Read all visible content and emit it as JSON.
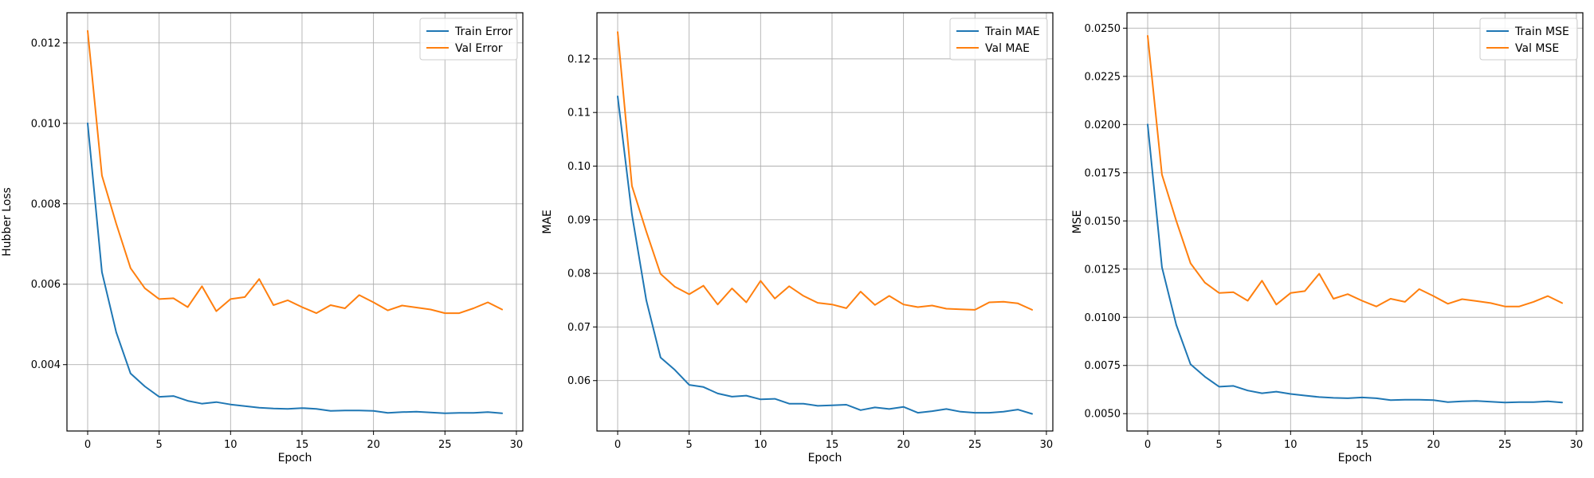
{
  "chart_data": [
    {
      "type": "line",
      "xlabel": "Epoch",
      "ylabel": "Hubber Loss",
      "xlim": [
        -1.45,
        30.45
      ],
      "ylim": [
        0.00235,
        0.01275
      ],
      "xticks": [
        0,
        5,
        10,
        15,
        20,
        25,
        30
      ],
      "yticks": [
        0.004,
        0.006,
        0.008,
        0.01,
        0.012
      ],
      "ytick_labels": [
        "0.004",
        "0.006",
        "0.008",
        "0.010",
        "0.012"
      ],
      "grid": true,
      "legend_position": "upper right",
      "series": [
        {
          "name": "Train Error",
          "color": "#1f77b4",
          "x": [
            0,
            1,
            2,
            3,
            4,
            5,
            6,
            7,
            8,
            9,
            10,
            11,
            12,
            13,
            14,
            15,
            16,
            17,
            18,
            19,
            20,
            21,
            22,
            23,
            24,
            25,
            26,
            27,
            28,
            29
          ],
          "values": [
            0.01,
            0.0063,
            0.0048,
            0.00378,
            0.00346,
            0.0032,
            0.00322,
            0.0031,
            0.00303,
            0.00307,
            0.00301,
            0.00297,
            0.00293,
            0.00291,
            0.0029,
            0.00292,
            0.0029,
            0.00285,
            0.00286,
            0.00286,
            0.00285,
            0.0028,
            0.00282,
            0.00283,
            0.00281,
            0.00279,
            0.0028,
            0.0028,
            0.00282,
            0.00279
          ]
        },
        {
          "name": "Val Error",
          "color": "#ff7f0e",
          "x": [
            0,
            1,
            2,
            3,
            4,
            5,
            6,
            7,
            8,
            9,
            10,
            11,
            12,
            13,
            14,
            15,
            16,
            17,
            18,
            19,
            20,
            21,
            22,
            23,
            24,
            25,
            26,
            27,
            28,
            29
          ],
          "values": [
            0.0123,
            0.0087,
            0.0075,
            0.0064,
            0.0059,
            0.00563,
            0.00565,
            0.00543,
            0.00595,
            0.00533,
            0.00563,
            0.00568,
            0.00613,
            0.00548,
            0.0056,
            0.00543,
            0.00528,
            0.00548,
            0.0054,
            0.00573,
            0.00555,
            0.00535,
            0.00547,
            0.00542,
            0.00537,
            0.00528,
            0.00528,
            0.0054,
            0.00555,
            0.00537
          ]
        }
      ]
    },
    {
      "type": "line",
      "xlabel": "Epoch",
      "ylabel": "MAE",
      "xlim": [
        -1.45,
        30.45
      ],
      "ylim": [
        0.0506,
        0.1286
      ],
      "xticks": [
        0,
        5,
        10,
        15,
        20,
        25,
        30
      ],
      "yticks": [
        0.06,
        0.07,
        0.08,
        0.09,
        0.1,
        0.11,
        0.12
      ],
      "ytick_labels": [
        "0.06",
        "0.07",
        "0.08",
        "0.09",
        "0.10",
        "0.11",
        "0.12"
      ],
      "grid": true,
      "legend_position": "upper right",
      "series": [
        {
          "name": "Train MAE",
          "color": "#1f77b4",
          "x": [
            0,
            1,
            2,
            3,
            4,
            5,
            6,
            7,
            8,
            9,
            10,
            11,
            12,
            13,
            14,
            15,
            16,
            17,
            18,
            19,
            20,
            21,
            22,
            23,
            24,
            25,
            26,
            27,
            28,
            29
          ],
          "values": [
            0.113,
            0.091,
            0.075,
            0.0643,
            0.062,
            0.0592,
            0.0588,
            0.0576,
            0.057,
            0.0572,
            0.0565,
            0.0566,
            0.0557,
            0.0557,
            0.0553,
            0.0554,
            0.0555,
            0.0545,
            0.055,
            0.0547,
            0.0551,
            0.054,
            0.0543,
            0.0547,
            0.0542,
            0.054,
            0.054,
            0.0542,
            0.0546,
            0.0538
          ]
        },
        {
          "name": "Val MAE",
          "color": "#ff7f0e",
          "x": [
            0,
            1,
            2,
            3,
            4,
            5,
            6,
            7,
            8,
            9,
            10,
            11,
            12,
            13,
            14,
            15,
            16,
            17,
            18,
            19,
            20,
            21,
            22,
            23,
            24,
            25,
            26,
            27,
            28,
            29
          ],
          "values": [
            0.125,
            0.0963,
            0.0878,
            0.0799,
            0.0775,
            0.0761,
            0.0777,
            0.0742,
            0.0772,
            0.0746,
            0.0786,
            0.0753,
            0.0776,
            0.0758,
            0.0745,
            0.0742,
            0.0735,
            0.0766,
            0.0741,
            0.0758,
            0.0742,
            0.0737,
            0.074,
            0.0734,
            0.0733,
            0.0732,
            0.0746,
            0.0747,
            0.0744,
            0.0732
          ]
        }
      ]
    },
    {
      "type": "line",
      "xlabel": "Epoch",
      "ylabel": "MSE",
      "xlim": [
        -1.45,
        30.45
      ],
      "ylim": [
        0.0041,
        0.0258
      ],
      "xticks": [
        0,
        5,
        10,
        15,
        20,
        25,
        30
      ],
      "yticks": [
        0.005,
        0.0075,
        0.01,
        0.0125,
        0.015,
        0.0175,
        0.02,
        0.0225,
        0.025
      ],
      "ytick_labels": [
        "0.0050",
        "0.0075",
        "0.0100",
        "0.0125",
        "0.0150",
        "0.0175",
        "0.0200",
        "0.0225",
        "0.0250"
      ],
      "grid": true,
      "legend_position": "upper right",
      "series": [
        {
          "name": "Train MSE",
          "color": "#1f77b4",
          "x": [
            0,
            1,
            2,
            3,
            4,
            5,
            6,
            7,
            8,
            9,
            10,
            11,
            12,
            13,
            14,
            15,
            16,
            17,
            18,
            19,
            20,
            21,
            22,
            23,
            24,
            25,
            26,
            27,
            28,
            29
          ],
          "values": [
            0.02,
            0.0126,
            0.0096,
            0.00756,
            0.00692,
            0.0064,
            0.00644,
            0.0062,
            0.00606,
            0.00614,
            0.00602,
            0.00594,
            0.00586,
            0.00582,
            0.0058,
            0.00584,
            0.0058,
            0.0057,
            0.00572,
            0.00572,
            0.0057,
            0.0056,
            0.00564,
            0.00566,
            0.00562,
            0.00558,
            0.0056,
            0.0056,
            0.00564,
            0.00558
          ]
        },
        {
          "name": "Val MSE",
          "color": "#ff7f0e",
          "x": [
            0,
            1,
            2,
            3,
            4,
            5,
            6,
            7,
            8,
            9,
            10,
            11,
            12,
            13,
            14,
            15,
            16,
            17,
            18,
            19,
            20,
            21,
            22,
            23,
            24,
            25,
            26,
            27,
            28,
            29
          ],
          "values": [
            0.0246,
            0.0174,
            0.015,
            0.0128,
            0.0118,
            0.01126,
            0.0113,
            0.01086,
            0.0119,
            0.01066,
            0.01126,
            0.01136,
            0.01226,
            0.01096,
            0.0112,
            0.01086,
            0.01056,
            0.01096,
            0.0108,
            0.01146,
            0.0111,
            0.0107,
            0.01094,
            0.01084,
            0.01074,
            0.01056,
            0.01056,
            0.0108,
            0.0111,
            0.01074
          ]
        }
      ]
    }
  ]
}
